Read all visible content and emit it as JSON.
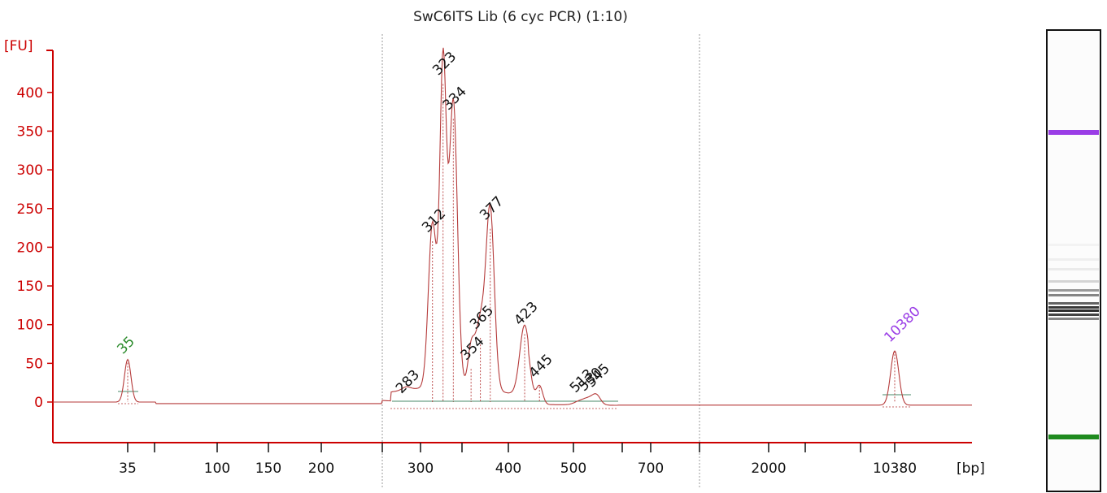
{
  "chart_data": {
    "type": "line",
    "title": "SwC6ITS Lib (6 cyc PCR)  (1:10)",
    "ylabel": "[FU]",
    "xlabel": "[bp]",
    "ylim": [
      -50,
      420
    ],
    "yticks": [
      "0",
      "50",
      "100",
      "150",
      "200",
      "250",
      "300",
      "350",
      "400"
    ],
    "xticks": [
      "35",
      "100",
      "150",
      "200",
      "300",
      "400",
      "500",
      "700",
      "2000",
      "10380"
    ],
    "x_scale": "nonlinear (size ladder)",
    "peaks": [
      {
        "label": "35",
        "bp": 35,
        "fu": 55,
        "kind": "marker",
        "color": "#2a8a2a"
      },
      {
        "label": "283",
        "bp": 283,
        "fu": 4,
        "kind": "sample"
      },
      {
        "label": "312",
        "bp": 312,
        "fu": 212,
        "kind": "sample"
      },
      {
        "label": "323",
        "bp": 323,
        "fu": 415,
        "kind": "sample"
      },
      {
        "label": "334",
        "bp": 334,
        "fu": 370,
        "kind": "sample"
      },
      {
        "label": "354",
        "bp": 354,
        "fu": 47,
        "kind": "sample"
      },
      {
        "label": "365",
        "bp": 365,
        "fu": 87,
        "kind": "sample"
      },
      {
        "label": "377",
        "bp": 377,
        "fu": 228,
        "kind": "sample"
      },
      {
        "label": "423",
        "bp": 423,
        "fu": 92,
        "kind": "sample"
      },
      {
        "label": "445",
        "bp": 445,
        "fu": 24,
        "kind": "sample"
      },
      {
        "label": "513",
        "bp": 513,
        "fu": 5,
        "kind": "sample"
      },
      {
        "label": "530",
        "bp": 530,
        "fu": 7,
        "kind": "sample"
      },
      {
        "label": "545",
        "bp": 545,
        "fu": 12,
        "kind": "sample"
      },
      {
        "label": "10380",
        "bp": 10380,
        "fu": 70,
        "kind": "marker",
        "color": "#9a3de6"
      }
    ],
    "gel_bands": [
      {
        "name": "upper-marker-band",
        "color": "#9a3de6"
      },
      {
        "name": "sample-bands",
        "color": "#222222"
      },
      {
        "name": "lower-marker-band",
        "color": "#1e8a1e"
      }
    ],
    "colors": {
      "axis": "#cc0000",
      "trace": "#b53a3a",
      "marker_lower": "#2a8a2a",
      "marker_upper": "#9a3de6"
    }
  }
}
